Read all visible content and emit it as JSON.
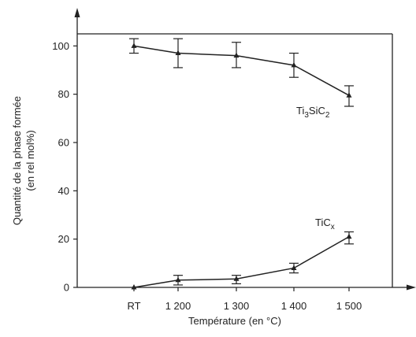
{
  "chart_data": {
    "type": "line",
    "categories": [
      "RT",
      "1 200",
      "1 300",
      "1 400",
      "1 500"
    ],
    "xlabel": "Température (en °C)",
    "ylabel_lines": [
      "Quantité de la phase formée",
      "(en rel mol%)"
    ],
    "ylim": [
      0,
      105
    ],
    "yticks": [
      0,
      20,
      40,
      60,
      80,
      100
    ],
    "grid": false,
    "series": [
      {
        "name": "Ti3SiC2",
        "label_base": "Ti",
        "label_sub1": "3",
        "label_mid": "SiC",
        "label_sub2": "2",
        "values": [
          100,
          97,
          96,
          92,
          79.5
        ],
        "err_low": [
          97,
          91,
          91,
          87,
          75
        ],
        "err_high": [
          103,
          103,
          101.5,
          97,
          83.5
        ]
      },
      {
        "name": "TiCx",
        "label_base": "TiC",
        "label_sub": "x",
        "values": [
          0,
          3,
          3.5,
          8,
          21
        ],
        "err_low": [
          0,
          1,
          1.5,
          6,
          18
        ],
        "err_high": [
          0,
          5,
          5,
          10,
          23
        ]
      }
    ]
  }
}
